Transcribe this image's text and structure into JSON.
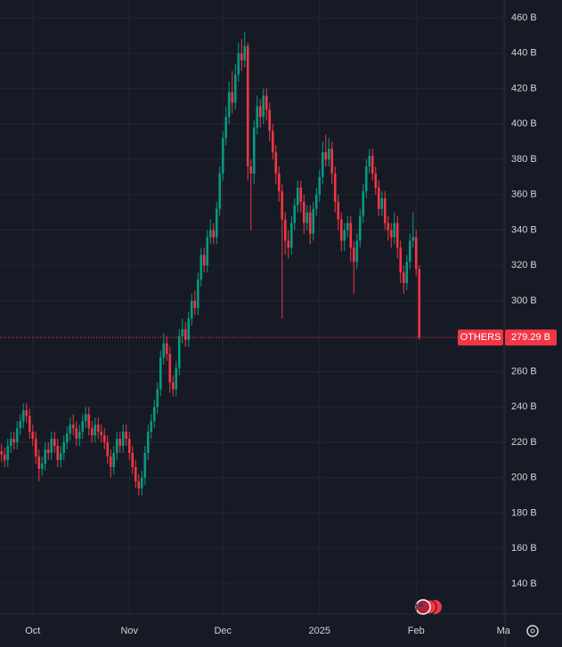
{
  "chart_data": {
    "type": "candlestick",
    "symbol": "OTHERS",
    "last_value_label": "279.29 B",
    "up_color": "#089981",
    "down_color": "#f23645",
    "grid": true,
    "ylim": [
      122.9,
      470.1
    ],
    "xlim": [
      -0.5,
      161.5
    ],
    "yticks": [
      {
        "value": 140,
        "label": "140 B"
      },
      {
        "value": 160,
        "label": "160 B"
      },
      {
        "value": 180,
        "label": "180 B"
      },
      {
        "value": 200,
        "label": "200 B"
      },
      {
        "value": 220,
        "label": "220 B"
      },
      {
        "value": 240,
        "label": "240 B"
      },
      {
        "value": 260,
        "label": "260 B"
      },
      {
        "value": 280,
        "label": "280 B"
      },
      {
        "value": 300,
        "label": "300 B"
      },
      {
        "value": 320,
        "label": "320 B"
      },
      {
        "value": 340,
        "label": "340 B"
      },
      {
        "value": 360,
        "label": "360 B"
      },
      {
        "value": 380,
        "label": "380 B"
      },
      {
        "value": 400,
        "label": "400 B"
      },
      {
        "value": 420,
        "label": "420 B"
      },
      {
        "value": 440,
        "label": "440 B"
      },
      {
        "value": 460,
        "label": "460 B"
      }
    ],
    "xticks": [
      {
        "value": 10,
        "label": "Oct"
      },
      {
        "value": 41,
        "label": "Nov"
      },
      {
        "value": 71,
        "label": "Dec"
      },
      {
        "value": 102,
        "label": "2025"
      },
      {
        "value": 133,
        "label": "Feb"
      },
      {
        "value": 161,
        "label": "Ma"
      }
    ],
    "open": [
      215,
      213,
      210,
      218,
      222,
      220,
      228,
      232,
      238,
      235,
      226,
      222,
      212,
      205,
      208,
      216,
      214,
      222,
      218,
      210,
      214,
      220,
      225,
      230,
      228,
      222,
      226,
      232,
      236,
      228,
      224,
      230,
      226,
      224,
      220,
      212,
      206,
      214,
      222,
      218,
      226,
      222,
      214,
      206,
      198,
      194,
      200,
      214,
      226,
      232,
      240,
      250,
      268,
      276,
      270,
      254,
      250,
      262,
      280,
      284,
      278,
      290,
      300,
      296,
      312,
      326,
      320,
      336,
      340,
      336,
      352,
      372,
      392,
      404,
      418,
      412,
      428,
      440,
      436,
      444,
      376,
      372,
      398,
      410,
      404,
      416,
      408,
      396,
      384,
      372,
      362,
      346,
      334,
      330,
      344,
      354,
      364,
      356,
      344,
      350,
      338,
      352,
      360,
      370,
      384,
      380,
      386,
      372,
      356,
      346,
      334,
      340,
      344,
      330,
      322,
      334,
      348,
      362,
      376,
      382,
      372,
      364,
      352,
      358,
      344,
      340,
      336,
      344,
      330,
      316,
      310,
      322,
      334,
      336,
      318
    ],
    "high": [
      219,
      217,
      222,
      226,
      226,
      232,
      236,
      242,
      242,
      239,
      230,
      226,
      216,
      212,
      220,
      220,
      226,
      226,
      222,
      218,
      224,
      229,
      234,
      236,
      232,
      230,
      236,
      240,
      240,
      232,
      234,
      234,
      230,
      228,
      224,
      216,
      218,
      226,
      226,
      230,
      230,
      226,
      218,
      210,
      202,
      204,
      218,
      230,
      236,
      244,
      254,
      272,
      282,
      280,
      274,
      258,
      266,
      284,
      290,
      288,
      294,
      304,
      306,
      316,
      330,
      330,
      340,
      346,
      344,
      356,
      376,
      396,
      410,
      424,
      430,
      434,
      446,
      448,
      452,
      446,
      380,
      402,
      416,
      414,
      420,
      420,
      412,
      400,
      388,
      376,
      366,
      350,
      340,
      348,
      358,
      368,
      368,
      360,
      354,
      354,
      356,
      364,
      374,
      390,
      394,
      392,
      390,
      376,
      360,
      350,
      344,
      348,
      348,
      334,
      338,
      352,
      366,
      380,
      386,
      386,
      376,
      368,
      362,
      362,
      348,
      344,
      350,
      348,
      334,
      320,
      326,
      338,
      350,
      340,
      320
    ],
    "low": [
      209,
      206,
      206,
      214,
      216,
      216,
      224,
      228,
      231,
      222,
      218,
      208,
      198,
      201,
      204,
      210,
      210,
      214,
      206,
      206,
      210,
      216,
      221,
      224,
      218,
      218,
      222,
      228,
      224,
      220,
      220,
      222,
      220,
      216,
      208,
      200,
      202,
      210,
      214,
      214,
      218,
      210,
      202,
      194,
      190,
      190,
      196,
      210,
      222,
      228,
      236,
      246,
      264,
      266,
      248,
      246,
      246,
      258,
      276,
      274,
      274,
      286,
      292,
      292,
      308,
      316,
      316,
      332,
      332,
      332,
      348,
      368,
      388,
      400,
      406,
      408,
      424,
      430,
      432,
      368,
      340,
      366,
      394,
      398,
      400,
      402,
      390,
      380,
      366,
      356,
      290,
      326,
      324,
      326,
      340,
      350,
      350,
      338,
      340,
      332,
      334,
      348,
      356,
      366,
      376,
      376,
      366,
      350,
      340,
      328,
      328,
      336,
      322,
      304,
      318,
      330,
      344,
      358,
      372,
      368,
      360,
      348,
      348,
      340,
      334,
      330,
      332,
      324,
      310,
      304,
      306,
      318,
      330,
      314,
      278
    ],
    "close": [
      213,
      210,
      218,
      222,
      220,
      228,
      232,
      238,
      235,
      226,
      222,
      212,
      205,
      208,
      216,
      214,
      222,
      218,
      210,
      214,
      220,
      225,
      230,
      228,
      222,
      226,
      232,
      236,
      228,
      224,
      230,
      226,
      224,
      220,
      212,
      206,
      214,
      222,
      218,
      226,
      222,
      214,
      206,
      198,
      194,
      200,
      214,
      226,
      232,
      240,
      250,
      268,
      276,
      270,
      254,
      250,
      262,
      280,
      284,
      278,
      290,
      300,
      296,
      312,
      326,
      320,
      336,
      340,
      336,
      352,
      372,
      392,
      404,
      418,
      412,
      428,
      440,
      436,
      444,
      376,
      372,
      398,
      410,
      404,
      416,
      408,
      396,
      384,
      372,
      362,
      346,
      334,
      330,
      344,
      354,
      364,
      356,
      344,
      350,
      338,
      352,
      360,
      370,
      384,
      380,
      386,
      372,
      356,
      346,
      334,
      340,
      344,
      330,
      322,
      334,
      348,
      362,
      376,
      382,
      372,
      364,
      352,
      358,
      344,
      340,
      336,
      344,
      330,
      316,
      310,
      322,
      334,
      336,
      318,
      279.29
    ]
  }
}
